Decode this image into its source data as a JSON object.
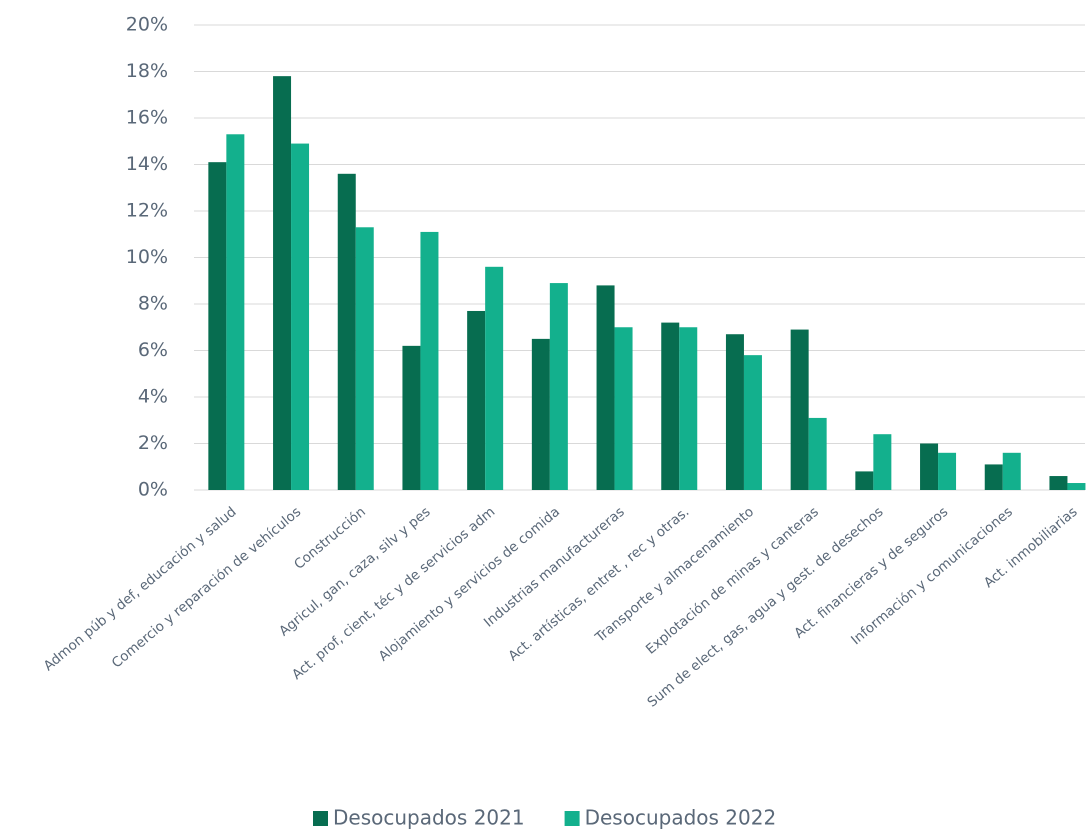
{
  "chart_data": {
    "type": "bar",
    "categories": [
      "Admon púb y def, educación y salud",
      "Comercio y reparación de vehículos",
      "Construcción",
      "Agricul, gan, caza, silv y pes",
      "Act. prof, cient, téc y de servicios adm",
      "Alojamiento y servicios de comida",
      "Industrias manufactureras",
      "Act. artísticas, entret , rec y otras.",
      "Transporte y almacenamiento",
      "Explotación de minas y canteras",
      "Sum de elect, gas, agua y gest. de desechos",
      "Act. financieras y de seguros",
      "Información y comunicaciones",
      "Act. inmobiliarias"
    ],
    "series": [
      {
        "name": "Desocupados 2021",
        "color": "#076d50",
        "values": [
          14.1,
          17.8,
          13.6,
          6.2,
          7.7,
          6.5,
          8.8,
          7.2,
          6.7,
          6.9,
          0.8,
          2.0,
          1.1,
          0.6
        ]
      },
      {
        "name": "Desocupados 2022",
        "color": "#13b08d",
        "values": [
          15.3,
          14.9,
          11.3,
          11.1,
          9.6,
          8.9,
          7.0,
          7.0,
          5.8,
          3.1,
          2.4,
          1.6,
          1.6,
          0.3
        ]
      }
    ],
    "ylim": [
      0,
      20
    ],
    "yticks": [
      {
        "value": 0,
        "label": "0%"
      },
      {
        "value": 2,
        "label": "2%"
      },
      {
        "value": 4,
        "label": "4%"
      },
      {
        "value": 6,
        "label": "6%"
      },
      {
        "value": 8,
        "label": "8%"
      },
      {
        "value": 10,
        "label": "10%"
      },
      {
        "value": 12,
        "label": "12%"
      },
      {
        "value": 14,
        "label": "14%"
      },
      {
        "value": 16,
        "label": "16%"
      },
      {
        "value": 18,
        "label": "18%"
      },
      {
        "value": 20,
        "label": "20%"
      }
    ],
    "grid": true,
    "legend": "bottom"
  }
}
